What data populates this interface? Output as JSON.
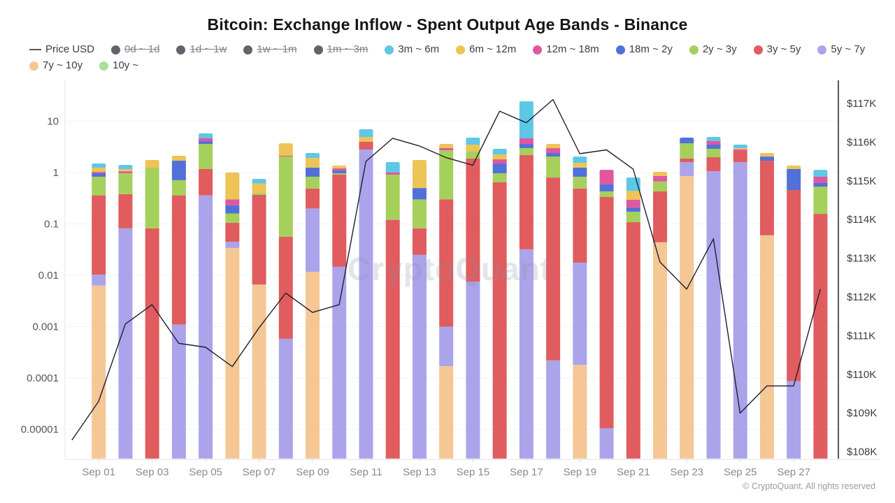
{
  "title": "Bitcoin: Exchange Inflow - Spent Output Age Bands - Binance",
  "watermark": "CryptoQuant",
  "copyright": "© CryptoQuant. All rights reserved",
  "legend": {
    "position": "top",
    "items": [
      {
        "label": "Price USD",
        "slug": "price-usd",
        "glyph": "line",
        "color": "#55555e",
        "disabled": false
      },
      {
        "label": "0d ~ 1d",
        "slug": "0d-1d",
        "glyph": "dot",
        "color": "#63636c",
        "disabled": true
      },
      {
        "label": "1d ~ 1w",
        "slug": "1d-1w",
        "glyph": "dot",
        "color": "#63636c",
        "disabled": true
      },
      {
        "label": "1w ~ 1m",
        "slug": "1w-1m",
        "glyph": "dot",
        "color": "#63636c",
        "disabled": true
      },
      {
        "label": "1m ~ 3m",
        "slug": "1m-3m",
        "glyph": "dot",
        "color": "#63636c",
        "disabled": true
      },
      {
        "label": "3m ~ 6m",
        "slug": "3m-6m",
        "glyph": "dot",
        "color": "#5fc7e6",
        "disabled": false
      },
      {
        "label": "6m ~ 12m",
        "slug": "6m-12m",
        "glyph": "dot",
        "color": "#edc455",
        "disabled": false
      },
      {
        "label": "12m ~ 18m",
        "slug": "12m-18m",
        "glyph": "dot",
        "color": "#e0579f",
        "disabled": false
      },
      {
        "label": "18m ~ 2y",
        "slug": "18m-2y",
        "glyph": "dot",
        "color": "#5171d9",
        "disabled": false
      },
      {
        "label": "2y ~ 3y",
        "slug": "2y-3y",
        "glyph": "dot",
        "color": "#a6d05c",
        "disabled": false
      },
      {
        "label": "3y ~ 5y",
        "slug": "3y-5y",
        "glyph": "dot",
        "color": "#e05c5f",
        "disabled": false
      },
      {
        "label": "5y ~ 7y",
        "slug": "5y-7y",
        "glyph": "dot",
        "color": "#aba4ea",
        "disabled": false
      },
      {
        "label": "7y ~ 10y",
        "slug": "7y-10y",
        "glyph": "dot",
        "color": "#f4c795",
        "disabled": false
      },
      {
        "label": "10y ~",
        "slug": "10y",
        "glyph": "dot",
        "color": "#a8df9c",
        "disabled": false
      }
    ]
  },
  "chart_data": {
    "type": "stacked-bar+line",
    "title": "Bitcoin: Exchange Inflow - Spent Output Age Bands - Binance",
    "grid": "faint-horizontal",
    "bands": {
      "3m ~ 6m": "#5fc7e6",
      "6m ~ 12m": "#edc455",
      "12m ~ 18m": "#e0579f",
      "18m ~ 2y": "#5171d9",
      "2y ~ 3y": "#a6d05c",
      "3y ~ 5y": "#e05c5f",
      "5y ~ 7y": "#aba4ea",
      "7y ~ 10y": "#f4c795",
      "10y ~": "#a8df9c"
    },
    "axes": {
      "left": {
        "scale": "log",
        "unit": "BTC",
        "ticks": [
          10,
          1,
          0.1,
          0.01,
          0.001,
          0.0001,
          1e-05
        ],
        "labels": [
          "10",
          "1",
          "0.1",
          "0.01",
          "0.001",
          "0.0001",
          "0.00001"
        ],
        "range": [
          2.8e-06,
          30
        ]
      },
      "right": {
        "scale": "linear",
        "unit": "USD",
        "values_k": [
          117,
          116,
          115,
          114,
          113,
          112,
          111,
          110,
          109,
          108
        ],
        "labels": [
          "$117K",
          "$116K",
          "$115K",
          "$114K",
          "$113K",
          "$112K",
          "$111K",
          "$110K",
          "$109K",
          "$108K"
        ]
      },
      "x": {
        "label_every": 2
      }
    },
    "categories": [
      "Sep 01",
      "Sep 02",
      "Sep 03",
      "Sep 04",
      "Sep 05",
      "Sep 06",
      "Sep 07",
      "Sep 08",
      "Sep 09",
      "Sep 10",
      "Sep 11",
      "Sep 12",
      "Sep 13",
      "Sep 14",
      "Sep 15",
      "Sep 16",
      "Sep 17",
      "Sep 18",
      "Sep 19",
      "Sep 20",
      "Sep 21",
      "Sep 22",
      "Sep 23",
      "Sep 24",
      "Sep 25",
      "Sep 26",
      "Sep 27",
      "Sep 28"
    ],
    "series_note": "segments listed bottom-to-top; cum_top = cumulative stacked value (BTC) at top of segment",
    "series": [
      {
        "date": "Sep 01",
        "segments": [
          [
            "7y ~ 10y",
            0.0063
          ],
          [
            "5y ~ 7y",
            0.0103
          ],
          [
            "3y ~ 5y",
            0.36
          ],
          [
            "2y ~ 3y",
            0.83
          ],
          [
            "18m ~ 2y",
            0.97
          ],
          [
            "12m ~ 18m",
            1.03
          ],
          [
            "6m ~ 12m",
            1.245
          ],
          [
            "3m ~ 6m",
            1.5
          ]
        ]
      },
      {
        "date": "Sep 02",
        "segments": [
          [
            "5y ~ 7y",
            0.082
          ],
          [
            "3y ~ 5y",
            0.38
          ],
          [
            "2y ~ 3y",
            0.97
          ],
          [
            "12m ~ 18m",
            1.06
          ],
          [
            "6m ~ 12m",
            1.17
          ],
          [
            "3m ~ 6m",
            1.41
          ]
        ]
      },
      {
        "date": "Sep 03",
        "segments": [
          [
            "3y ~ 5y",
            0.082
          ],
          [
            "2y ~ 3y",
            1.24
          ],
          [
            "6m ~ 12m",
            1.76
          ]
        ]
      },
      {
        "date": "Sep 04",
        "segments": [
          [
            "5y ~ 7y",
            0.0011
          ],
          [
            "3y ~ 5y",
            0.36
          ],
          [
            "2y ~ 3y",
            0.71
          ],
          [
            "18m ~ 2y",
            1.7
          ],
          [
            "6m ~ 12m",
            2.12
          ]
        ]
      },
      {
        "date": "Sep 05",
        "segments": [
          [
            "5y ~ 7y",
            0.36
          ],
          [
            "3y ~ 5y",
            1.17
          ],
          [
            "2y ~ 3y",
            3.6
          ],
          [
            "18m ~ 2y",
            4.1
          ],
          [
            "12m ~ 18m",
            4.65
          ],
          [
            "3m ~ 6m",
            5.8
          ]
        ]
      },
      {
        "date": "Sep 06",
        "segments": [
          [
            "7y ~ 10y",
            0.034
          ],
          [
            "5y ~ 7y",
            0.045
          ],
          [
            "3y ~ 5y",
            0.105
          ],
          [
            "2y ~ 3y",
            0.16
          ],
          [
            "18m ~ 2y",
            0.23
          ],
          [
            "12m ~ 18m",
            0.3
          ],
          [
            "6m ~ 12m",
            1.0
          ]
        ]
      },
      {
        "date": "Sep 07",
        "segments": [
          [
            "7y ~ 10y",
            0.0066
          ],
          [
            "3y ~ 5y",
            0.37
          ],
          [
            "2y ~ 3y",
            0.4
          ],
          [
            "6m ~ 12m",
            0.61
          ],
          [
            "3m ~ 6m",
            0.75
          ]
        ]
      },
      {
        "date": "Sep 08",
        "segments": [
          [
            "5y ~ 7y",
            0.00058
          ],
          [
            "3y ~ 5y",
            0.056
          ],
          [
            "2y ~ 3y",
            2.05
          ],
          [
            "12m ~ 18m",
            2.12
          ],
          [
            "6m ~ 12m",
            3.72
          ]
        ]
      },
      {
        "date": "Sep 09",
        "segments": [
          [
            "7y ~ 10y",
            0.0117
          ],
          [
            "5y ~ 7y",
            0.2
          ],
          [
            "3y ~ 5y",
            0.49
          ],
          [
            "2y ~ 3y",
            0.83
          ],
          [
            "18m ~ 2y",
            1.25
          ],
          [
            "6m ~ 12m",
            1.93
          ],
          [
            "3m ~ 6m",
            2.4
          ]
        ]
      },
      {
        "date": "Sep 10",
        "segments": [
          [
            "5y ~ 7y",
            0.0146
          ],
          [
            "3y ~ 5y",
            0.91
          ],
          [
            "2y ~ 3y",
            0.97
          ],
          [
            "18m ~ 2y",
            1.1
          ],
          [
            "12m ~ 18m",
            1.21
          ],
          [
            "6m ~ 12m",
            1.37
          ]
        ]
      },
      {
        "date": "Sep 11",
        "segments": [
          [
            "5y ~ 7y",
            2.81
          ],
          [
            "3y ~ 5y",
            3.97
          ],
          [
            "6m ~ 12m",
            4.94
          ],
          [
            "3m ~ 6m",
            6.98
          ]
        ]
      },
      {
        "date": "Sep 12",
        "segments": [
          [
            "3y ~ 5y",
            0.12
          ],
          [
            "2y ~ 3y",
            0.91
          ],
          [
            "12m ~ 18m",
            1.0
          ],
          [
            "3m ~ 6m",
            1.6
          ]
        ]
      },
      {
        "date": "Sep 13",
        "segments": [
          [
            "5y ~ 7y",
            0.025
          ],
          [
            "3y ~ 5y",
            0.082
          ],
          [
            "2y ~ 3y",
            0.3
          ],
          [
            "18m ~ 2y",
            0.5
          ],
          [
            "6m ~ 12m",
            1.76
          ]
        ]
      },
      {
        "date": "Sep 14",
        "segments": [
          [
            "7y ~ 10y",
            0.00017
          ],
          [
            "5y ~ 7y",
            0.001
          ],
          [
            "3y ~ 5y",
            0.3
          ],
          [
            "2y ~ 3y",
            2.72
          ],
          [
            "12m ~ 18m",
            2.99
          ],
          [
            "6m ~ 12m",
            3.61
          ]
        ]
      },
      {
        "date": "Sep 15",
        "segments": [
          [
            "5y ~ 7y",
            0.0075
          ],
          [
            "3y ~ 5y",
            1.87
          ],
          [
            "2y ~ 3y",
            2.56
          ],
          [
            "6m ~ 12m",
            3.5
          ],
          [
            "3m ~ 6m",
            4.79
          ]
        ]
      },
      {
        "date": "Sep 16",
        "segments": [
          [
            "3y ~ 5y",
            0.645
          ],
          [
            "2y ~ 3y",
            0.97
          ],
          [
            "18m ~ 2y",
            1.5
          ],
          [
            "12m ~ 18m",
            1.81
          ],
          [
            "6m ~ 12m",
            2.26
          ],
          [
            "3m ~ 6m",
            2.9
          ]
        ]
      },
      {
        "date": "Sep 17",
        "segments": [
          [
            "5y ~ 7y",
            0.032
          ],
          [
            "3y ~ 5y",
            2.19
          ],
          [
            "2y ~ 3y",
            2.99
          ],
          [
            "18m ~ 2y",
            3.61
          ],
          [
            "12m ~ 18m",
            4.65
          ],
          [
            "3m ~ 6m",
            24.4
          ]
        ]
      },
      {
        "date": "Sep 18",
        "segments": [
          [
            "5y ~ 7y",
            0.00022
          ],
          [
            "3y ~ 5y",
            0.8
          ],
          [
            "2y ~ 3y",
            2.05
          ],
          [
            "18m ~ 2y",
            2.4
          ],
          [
            "12m ~ 18m",
            2.99
          ],
          [
            "6m ~ 12m",
            3.61
          ]
        ]
      },
      {
        "date": "Sep 19",
        "segments": [
          [
            "7y ~ 10y",
            0.00018
          ],
          [
            "5y ~ 7y",
            0.0176
          ],
          [
            "3y ~ 5y",
            0.49
          ],
          [
            "2y ~ 3y",
            0.83
          ],
          [
            "18m ~ 2y",
            1.25
          ],
          [
            "6m ~ 12m",
            1.55
          ],
          [
            "3m ~ 6m",
            2.05
          ]
        ]
      },
      {
        "date": "Sep 20",
        "segments": [
          [
            "5y ~ 7y",
            1.05e-05
          ],
          [
            "3y ~ 5y",
            0.334
          ],
          [
            "2y ~ 3y",
            0.43
          ],
          [
            "18m ~ 2y",
            0.59
          ],
          [
            "12m ~ 18m",
            1.13
          ]
        ]
      },
      {
        "date": "Sep 21",
        "segments": [
          [
            "3y ~ 5y",
            0.108
          ],
          [
            "2y ~ 3y",
            0.173
          ],
          [
            "18m ~ 2y",
            0.21
          ],
          [
            "12m ~ 18m",
            0.295
          ],
          [
            "6m ~ 12m",
            0.44
          ],
          [
            "3m ~ 6m",
            0.8
          ]
        ]
      },
      {
        "date": "Sep 22",
        "segments": [
          [
            "7y ~ 10y",
            0.044
          ],
          [
            "3y ~ 5y",
            0.43
          ],
          [
            "2y ~ 3y",
            0.67
          ],
          [
            "12m ~ 18m",
            0.855
          ],
          [
            "6m ~ 12m",
            1.03
          ]
        ]
      },
      {
        "date": "Sep 23",
        "segments": [
          [
            "7y ~ 10y",
            0.855
          ],
          [
            "5y ~ 7y",
            1.6
          ],
          [
            "3y ~ 5y",
            1.87
          ],
          [
            "2y ~ 3y",
            3.72
          ],
          [
            "18m ~ 2y",
            4.79
          ]
        ]
      },
      {
        "date": "Sep 24",
        "segments": [
          [
            "5y ~ 7y",
            1.06
          ],
          [
            "3y ~ 5y",
            1.99
          ],
          [
            "2y ~ 3y",
            2.9
          ],
          [
            "18m ~ 2y",
            3.5
          ],
          [
            "12m ~ 18m",
            4.1
          ],
          [
            "3m ~ 6m",
            4.94
          ]
        ]
      },
      {
        "date": "Sep 25",
        "segments": [
          [
            "5y ~ 7y",
            1.6
          ],
          [
            "3y ~ 5y",
            2.56
          ],
          [
            "12m ~ 18m",
            2.81
          ],
          [
            "6m ~ 12m",
            2.99
          ],
          [
            "3m ~ 6m",
            3.5
          ]
        ]
      },
      {
        "date": "Sep 26",
        "segments": [
          [
            "7y ~ 10y",
            0.06
          ],
          [
            "3y ~ 5y",
            1.7
          ],
          [
            "18m ~ 2y",
            2.05
          ],
          [
            "6m ~ 12m",
            2.4
          ]
        ]
      },
      {
        "date": "Sep 27",
        "segments": [
          [
            "5y ~ 7y",
            8.7e-05
          ],
          [
            "3y ~ 5y",
            0.457
          ],
          [
            "18m ~ 2y",
            1.17
          ],
          [
            "6m ~ 12m",
            1.37
          ]
        ]
      },
      {
        "date": "Sep 28",
        "segments": [
          [
            "3y ~ 5y",
            0.157
          ],
          [
            "2y ~ 3y",
            0.53
          ],
          [
            "18m ~ 2y",
            0.625
          ],
          [
            "12m ~ 18m",
            0.83
          ],
          [
            "3m ~ 6m",
            1.13
          ]
        ]
      }
    ],
    "price_usd": {
      "name": "Price USD",
      "color": "#1f1f2e",
      "unit": "$K",
      "points": [
        [
          "Aug 31",
          108.3
        ],
        [
          "Sep 01",
          109.3
        ],
        [
          "Sep 02",
          111.3
        ],
        [
          "Sep 03",
          111.8
        ],
        [
          "Sep 04",
          110.8
        ],
        [
          "Sep 05",
          110.7
        ],
        [
          "Sep 06",
          110.2
        ],
        [
          "Sep 07",
          111.2
        ],
        [
          "Sep 08",
          112.1
        ],
        [
          "Sep 09",
          111.6
        ],
        [
          "Sep 10",
          111.8
        ],
        [
          "Sep 11",
          115.5
        ],
        [
          "Sep 12",
          116.1
        ],
        [
          "Sep 13",
          115.9
        ],
        [
          "Sep 14",
          115.6
        ],
        [
          "Sep 15",
          115.4
        ],
        [
          "Sep 16",
          116.8
        ],
        [
          "Sep 17",
          116.5
        ],
        [
          "Sep 18",
          117.1
        ],
        [
          "Sep 19",
          115.7
        ],
        [
          "Sep 20",
          115.8
        ],
        [
          "Sep 21",
          115.3
        ],
        [
          "Sep 22",
          112.9
        ],
        [
          "Sep 23",
          112.2
        ],
        [
          "Sep 24",
          113.5
        ],
        [
          "Sep 25",
          109.0
        ],
        [
          "Sep 26",
          109.7
        ],
        [
          "Sep 27",
          109.7
        ],
        [
          "Sep 28",
          112.2
        ]
      ]
    }
  }
}
